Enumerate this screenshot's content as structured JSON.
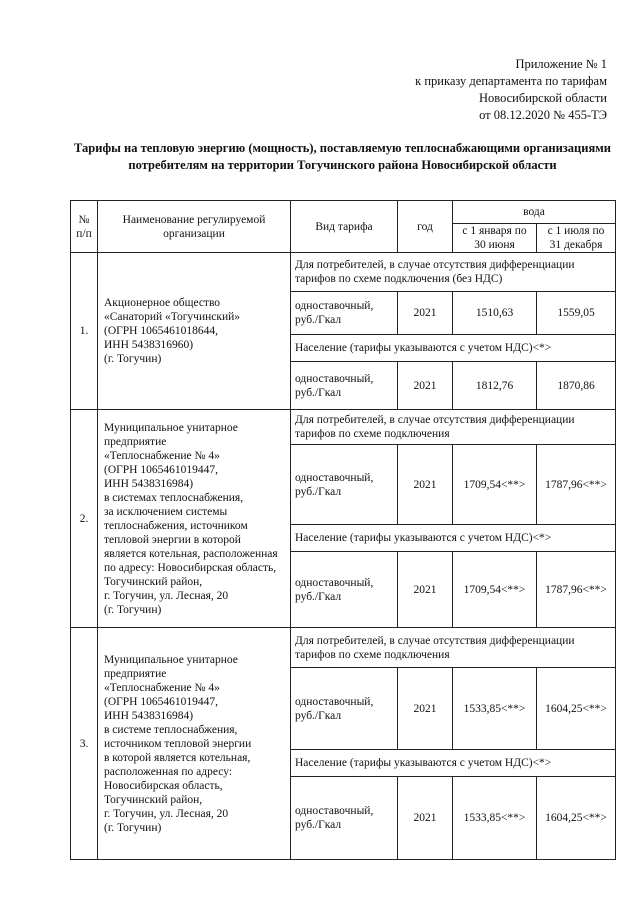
{
  "appendix": {
    "line1": "Приложение № 1",
    "line2": "к приказу департамента по тарифам",
    "line3": "Новосибирской области",
    "line4": "от 08.12.2020 № 455-ТЭ"
  },
  "title": "Тарифы на тепловую энергию (мощность), поставляемую теплоснабжающими организациями потребителям на территории Тогучинского района Новосибирской области",
  "table": {
    "headers": {
      "num": "№ п/п",
      "org": "Наименование регулируемой организации",
      "kind": "Вид тарифа",
      "year": "год",
      "group": "вода",
      "period1": "с 1 января по 30 июня",
      "period2": "с 1 июля по 31 декабря"
    },
    "rows": [
      {
        "num": "1.",
        "org": "Акционерное общество\n«Санаторий «Тогучинский»\n(ОГРН 1065461018644,\nИНН 5438316960)\n(г. Тогучин)",
        "seg1": "Для потребителей, в случае отсутствия дифференциации тарифов по схеме подключения (без НДС)",
        "r1": {
          "kind": "одноставочный, руб./Гкал",
          "year": "2021",
          "v1": "1510,63",
          "v2": "1559,05"
        },
        "seg2": "Население (тарифы указываются с учетом НДС)<*>",
        "r2": {
          "kind": "одноставочный, руб./Гкал",
          "year": "2021",
          "v1": "1812,76",
          "v2": "1870,86"
        }
      },
      {
        "num": "2.",
        "org": "Муниципальное унитарное\nпредприятие\n«Теплоснабжение № 4»\n(ОГРН 1065461019447,\nИНН 5438316984)\nв системах теплоснабжения,\nза исключением системы\nтеплоснабжения, источником\nтепловой энергии в которой\nявляется котельная, расположенная\nпо адресу: Новосибирская область,\nТогучинский район,\nг. Тогучин, ул. Лесная, 20\n(г. Тогучин)",
        "seg1": "Для потребителей, в случае отсутствия дифференциации тарифов по схеме подключения",
        "r1": {
          "kind": "одноставочный, руб./Гкал",
          "year": "2021",
          "v1": "1709,54<**>",
          "v2": "1787,96<**>"
        },
        "seg2": "Население (тарифы указываются с учетом НДС)<*>",
        "r2": {
          "kind": "одноставочный, руб./Гкал",
          "year": "2021",
          "v1": "1709,54<**>",
          "v2": "1787,96<**>"
        }
      },
      {
        "num": "3.",
        "org": "Муниципальное унитарное\nпредприятие\n«Теплоснабжение № 4»\n(ОГРН 1065461019447,\nИНН 5438316984)\nв системе теплоснабжения,\nисточником тепловой энергии\nв которой является котельная,\nрасположенная по адресу:\nНовосибирская область,\nТогучинский район,\nг. Тогучин, ул. Лесная, 20\n(г. Тогучин)",
        "seg1": "Для потребителей, в случае отсутствия дифференциации тарифов по схеме подключения",
        "r1": {
          "kind": "одноставочный, руб./Гкал",
          "year": "2021",
          "v1": "1533,85<**>",
          "v2": "1604,25<**>"
        },
        "seg2": "Население (тарифы указываются с учетом НДС)<*>",
        "r2": {
          "kind": "одноставочный, руб./Гкал",
          "year": "2021",
          "v1": "1533,85<**>",
          "v2": "1604,25<**>"
        }
      }
    ]
  }
}
